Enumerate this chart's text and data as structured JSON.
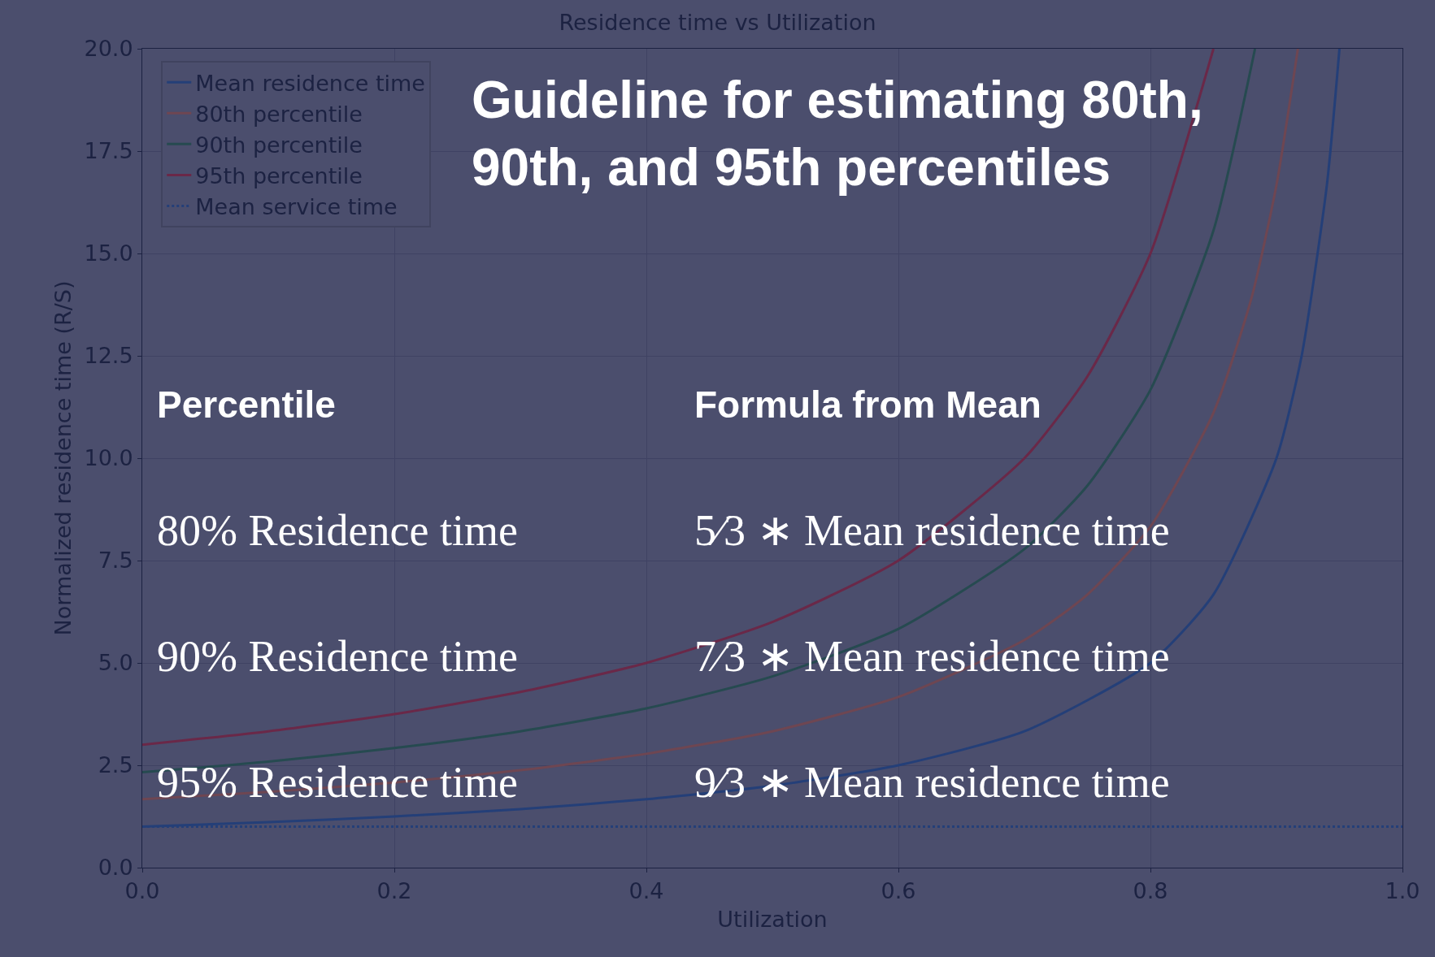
{
  "chart_data": {
    "type": "line",
    "title": "Residence time vs Utilization",
    "xlabel": "Utilization",
    "ylabel": "Normalized residence time (R/S)",
    "series": [
      {
        "name": "Mean residence time",
        "color": "#243f78",
        "x": [
          0,
          0.1,
          0.2,
          0.3,
          0.4,
          0.5,
          0.6,
          0.7,
          0.8,
          0.85,
          0.9,
          0.92,
          0.94,
          0.95
        ],
        "values": [
          1,
          1.11,
          1.25,
          1.43,
          1.67,
          2,
          2.5,
          3.33,
          5,
          6.67,
          10,
          12.5,
          16.67,
          20
        ]
      },
      {
        "name": "80th percentile",
        "color": "#6e4652",
        "x": [
          0,
          0.1,
          0.2,
          0.3,
          0.4,
          0.5,
          0.6,
          0.7,
          0.75,
          0.8,
          0.85,
          0.88,
          0.9,
          0.917
        ],
        "values": [
          1.67,
          1.85,
          2.08,
          2.38,
          2.78,
          3.33,
          4.17,
          5.56,
          6.67,
          8.33,
          11.11,
          13.89,
          16.67,
          20
        ]
      },
      {
        "name": "90th percentile",
        "color": "#264a50",
        "x": [
          0,
          0.1,
          0.2,
          0.3,
          0.4,
          0.5,
          0.6,
          0.7,
          0.75,
          0.8,
          0.85,
          0.883
        ],
        "values": [
          2.33,
          2.59,
          2.92,
          3.33,
          3.89,
          4.67,
          5.83,
          7.78,
          9.33,
          11.67,
          15.56,
          20
        ]
      },
      {
        "name": "95th percentile",
        "color": "#6a2848",
        "x": [
          0,
          0.1,
          0.2,
          0.3,
          0.4,
          0.5,
          0.6,
          0.7,
          0.75,
          0.8,
          0.85
        ],
        "values": [
          3,
          3.33,
          3.75,
          4.29,
          5,
          6,
          7.5,
          10,
          12,
          15,
          20
        ]
      },
      {
        "name": "Mean service time",
        "color": "#243f78",
        "line_style": "dotted",
        "x": [
          0,
          1
        ],
        "values": [
          1,
          1
        ]
      }
    ],
    "xlim": [
      0,
      1
    ],
    "ylim": [
      0,
      20
    ],
    "xticks": [
      {
        "value": 0,
        "label": "0.0"
      },
      {
        "value": 0.2,
        "label": "0.2"
      },
      {
        "value": 0.4,
        "label": "0.4"
      },
      {
        "value": 0.6,
        "label": "0.6"
      },
      {
        "value": 0.8,
        "label": "0.8"
      },
      {
        "value": 1,
        "label": "1.0"
      }
    ],
    "yticks": [
      {
        "value": 0,
        "label": "0.0"
      },
      {
        "value": 2.5,
        "label": "2.5"
      },
      {
        "value": 5,
        "label": "5.0"
      },
      {
        "value": 7.5,
        "label": "7.5"
      },
      {
        "value": 10,
        "label": "10.0"
      },
      {
        "value": 12.5,
        "label": "12.5"
      },
      {
        "value": 15,
        "label": "15.0"
      },
      {
        "value": 17.5,
        "label": "17.5"
      },
      {
        "value": 20,
        "label": "20.0"
      }
    ],
    "grid": true,
    "legend": "top left",
    "line_style": "solid",
    "marker": "none",
    "annotations": [
      "Guideline for estimating 80th,\n90th, and 95th percentiles",
      "Percentile",
      "Formula from Mean",
      "80% Residence time",
      "5⁄3 ∗ Mean residence time",
      "90% Residence time",
      "7⁄3 ∗ Mean residence time",
      "95% Residence time",
      "9⁄3 ∗ Mean residence time"
    ]
  }
}
